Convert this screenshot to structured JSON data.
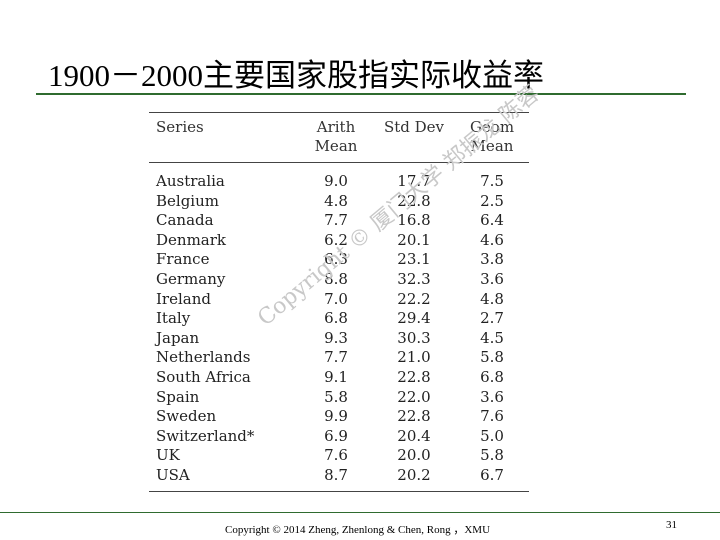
{
  "slide": {
    "title": "1900－2000主要国家股指实际收益率",
    "watermark": "Copyright © 厦门大学 郑振龙 陈蓉",
    "footer": "Copyright © 2014 Zheng, Zhenlong & Chen, Rong ，XMU",
    "page_number": "31"
  },
  "table": {
    "headers": {
      "series": "Series",
      "arith_line1": "Arith",
      "arith_line2": "Mean",
      "std_dev": "Std Dev",
      "geom_line1": "Geom",
      "geom_line2": "Mean"
    },
    "rows": [
      {
        "series": "Australia",
        "arith": "9.0",
        "std": "17.7",
        "geom": "7.5"
      },
      {
        "series": "Belgium",
        "arith": "4.8",
        "std": "22.8",
        "geom": "2.5"
      },
      {
        "series": "Canada",
        "arith": "7.7",
        "std": "16.8",
        "geom": "6.4"
      },
      {
        "series": "Denmark",
        "arith": "6.2",
        "std": "20.1",
        "geom": "4.6"
      },
      {
        "series": "France",
        "arith": "6.3",
        "std": "23.1",
        "geom": "3.8"
      },
      {
        "series": "Germany",
        "arith": "8.8",
        "std": "32.3",
        "geom": "3.6"
      },
      {
        "series": "Ireland",
        "arith": "7.0",
        "std": "22.2",
        "geom": "4.8"
      },
      {
        "series": "Italy",
        "arith": "6.8",
        "std": "29.4",
        "geom": "2.7"
      },
      {
        "series": "Japan",
        "arith": "9.3",
        "std": "30.3",
        "geom": "4.5"
      },
      {
        "series": "Netherlands",
        "arith": "7.7",
        "std": "21.0",
        "geom": "5.8"
      },
      {
        "series": "South Africa",
        "arith": "9.1",
        "std": "22.8",
        "geom": "6.8"
      },
      {
        "series": "Spain",
        "arith": "5.8",
        "std": "22.0",
        "geom": "3.6"
      },
      {
        "series": "Sweden",
        "arith": "9.9",
        "std": "22.8",
        "geom": "7.6"
      },
      {
        "series": "Switzerland*",
        "arith": "6.9",
        "std": "20.4",
        "geom": "5.0"
      },
      {
        "series": "UK",
        "arith": "7.6",
        "std": "20.0",
        "geom": "5.8"
      },
      {
        "series": "USA",
        "arith": "8.7",
        "std": "20.2",
        "geom": "6.7"
      }
    ]
  }
}
